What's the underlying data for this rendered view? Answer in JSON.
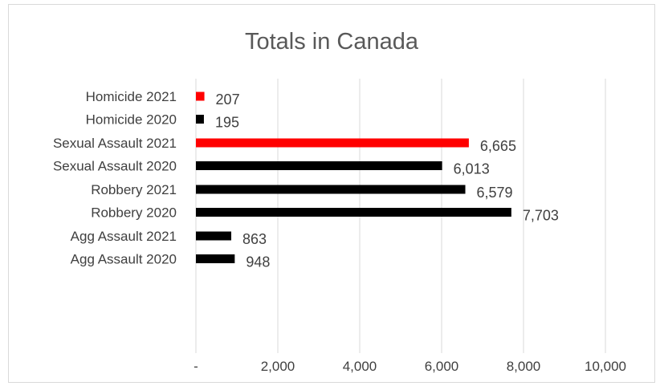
{
  "chart_data": {
    "type": "bar",
    "orientation": "horizontal",
    "title": "Totals in Canada",
    "xlabel": "",
    "ylabel": "",
    "xlim": [
      0,
      10000
    ],
    "x_ticks": [
      "-",
      "2,000",
      "4,000",
      "6,000",
      "8,000",
      "10,000"
    ],
    "grid": "vertical",
    "legend": "none",
    "groups": [
      {
        "bars": [
          {
            "label": "Homicide 2021",
            "value": 207,
            "value_label": "207",
            "color": "#ff0000"
          },
          {
            "label": "Homicide 2020",
            "value": 195,
            "value_label": "195",
            "color": "#000000"
          }
        ]
      },
      {
        "bars": [
          {
            "label": "Sexual Assault 2021",
            "value": 6665,
            "value_label": "6,665",
            "color": "#ff0000"
          },
          {
            "label": "Sexual Assault 2020",
            "value": 6013,
            "value_label": "6,013",
            "color": "#000000"
          }
        ]
      },
      {
        "bars": [
          {
            "label": "Robbery 2021",
            "value": 6579,
            "value_label": "6,579",
            "color": "#000000"
          },
          {
            "label": "Robbery 2020",
            "value": 7703,
            "value_label": "7,703",
            "color": "#000000"
          }
        ]
      },
      {
        "bars": [
          {
            "label": "Agg Assault 2021",
            "value": 863,
            "value_label": "863",
            "color": "#000000"
          },
          {
            "label": "Agg Assault 2020",
            "value": 948,
            "value_label": "948",
            "color": "#000000"
          }
        ]
      }
    ]
  }
}
